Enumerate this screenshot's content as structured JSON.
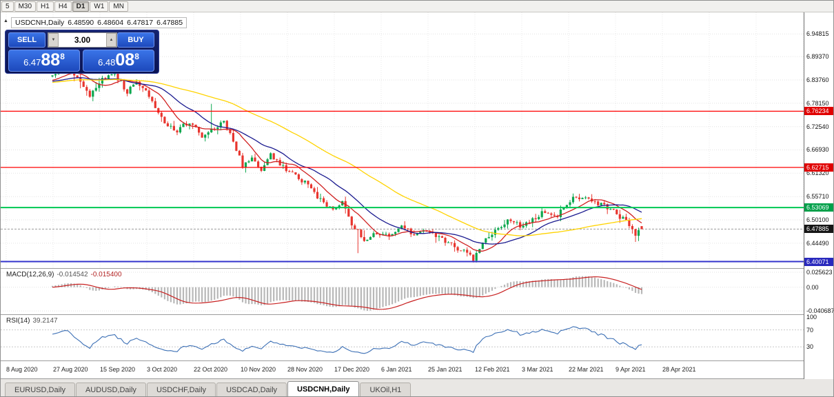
{
  "toolbar": {
    "timeframes": [
      "5",
      "M30",
      "H1",
      "H4",
      "D1",
      "W1",
      "MN"
    ],
    "active": "D1"
  },
  "chart_header": {
    "symbol": "USDCNH,Daily",
    "open": "6.48590",
    "high": "6.48604",
    "low": "6.47817",
    "close": "6.47885"
  },
  "icons": {
    "spin_up": "▲",
    "spin_down": "▼",
    "panel_collapse": "▲"
  },
  "trade_panel": {
    "sell_label": "SELL",
    "buy_label": "BUY",
    "volume": "3.00",
    "sell_price": {
      "main": "6.47",
      "big": "88",
      "sup": "8"
    },
    "buy_price": {
      "main": "6.48",
      "big": "08",
      "sup": "8"
    }
  },
  "price_axis": {
    "current_badge": {
      "label": "6.47885",
      "value": 6.47885,
      "color": "#161616"
    }
  },
  "chart_data": [
    {
      "type": "candlestick",
      "symbol": "USDCNH",
      "timeframe": "Daily",
      "ohlc_display": {
        "open": 6.4859,
        "high": 6.48604,
        "low": 6.47817,
        "close": 6.47885
      },
      "price_range": [
        6.385,
        7.0
      ],
      "y_ticks": [
        "6.94815",
        "6.89370",
        "6.83760",
        "6.78150",
        "6.72540",
        "6.66930",
        "6.61320",
        "6.55710",
        "6.50100",
        "6.44490"
      ],
      "x_labels": [
        "8 Aug 2020",
        "27 Aug 2020",
        "15 Sep 2020",
        "3 Oct 2020",
        "22 Oct 2020",
        "10 Nov 2020",
        "28 Nov 2020",
        "17 Dec 2020",
        "6 Jan 2021",
        "25 Jan 2021",
        "12 Feb 2021",
        "3 Mar 2021",
        "22 Mar 2021",
        "9 Apr 2021",
        "28 Apr 2021"
      ],
      "levels": [
        {
          "price": 6.76234,
          "label": "6.76234",
          "color": "#ff0000",
          "badge_color": "#e00000",
          "width": 1.2
        },
        {
          "price": 6.62715,
          "label": "6.62715",
          "color": "#ff0000",
          "badge_color": "#e00000",
          "width": 1.2
        },
        {
          "price": 6.53069,
          "label": "6.53069",
          "color": "#00c853",
          "badge_color": "#00a04a",
          "width": 2
        },
        {
          "price": 6.40071,
          "label": "6.40071",
          "color": "#3333cc",
          "badge_color": "#2929bd",
          "width": 2
        }
      ],
      "up_color": "#0ca74e",
      "down_color": "#e8352e",
      "num_candles": 190,
      "trend_close_anchors": [
        [
          0,
          6.852
        ],
        [
          4,
          6.868
        ],
        [
          8,
          6.842
        ],
        [
          12,
          6.8
        ],
        [
          16,
          6.838
        ],
        [
          20,
          6.852
        ],
        [
          24,
          6.81
        ],
        [
          27,
          6.835
        ],
        [
          31,
          6.8
        ],
        [
          35,
          6.748
        ],
        [
          39,
          6.712
        ],
        [
          44,
          6.738
        ],
        [
          48,
          6.7
        ],
        [
          52,
          6.722
        ],
        [
          55,
          6.742
        ],
        [
          58,
          6.688
        ],
        [
          61,
          6.632
        ],
        [
          64,
          6.648
        ],
        [
          67,
          6.618
        ],
        [
          70,
          6.658
        ],
        [
          74,
          6.63
        ],
        [
          78,
          6.606
        ],
        [
          82,
          6.588
        ],
        [
          86,
          6.548
        ],
        [
          90,
          6.522
        ],
        [
          93,
          6.545
        ],
        [
          96,
          6.492
        ],
        [
          100,
          6.452
        ],
        [
          104,
          6.47
        ],
        [
          108,
          6.462
        ],
        [
          112,
          6.482
        ],
        [
          116,
          6.468
        ],
        [
          120,
          6.478
        ],
        [
          124,
          6.458
        ],
        [
          128,
          6.44
        ],
        [
          132,
          6.425
        ],
        [
          135,
          6.405
        ],
        [
          138,
          6.452
        ],
        [
          142,
          6.472
        ],
        [
          146,
          6.5
        ],
        [
          150,
          6.488
        ],
        [
          154,
          6.502
        ],
        [
          158,
          6.522
        ],
        [
          162,
          6.512
        ],
        [
          166,
          6.548
        ],
        [
          170,
          6.558
        ],
        [
          175,
          6.54
        ],
        [
          179,
          6.528
        ],
        [
          182,
          6.508
        ],
        [
          185,
          6.492
        ],
        [
          187,
          6.468
        ],
        [
          189,
          6.47885
        ]
      ],
      "special_wicks": {
        "high": [
          [
            51,
            6.78
          ]
        ],
        "low": [
          [
            98,
            6.421
          ],
          [
            135,
            6.3985
          ]
        ]
      },
      "moving_averages": [
        {
          "period": 10,
          "color": "#d02020"
        },
        {
          "period": 21,
          "color": "#1a1a8f"
        },
        {
          "period": 55,
          "color": "#ffd300"
        }
      ]
    },
    {
      "type": "macd",
      "label": "MACD(12,26,9)",
      "value_main": "-0.014542",
      "value_signal": "-0.015400",
      "params": {
        "fast": 12,
        "slow": 26,
        "signal": 9
      },
      "y_ticks": [
        {
          "label": "0.025623",
          "value": 0.025623
        },
        {
          "label": "0.00",
          "value": 0
        },
        {
          "label": "-0.040687",
          "value": -0.040687
        }
      ],
      "range": [
        0.0315,
        -0.0465
      ],
      "histogram_color": "#b8b8b8",
      "signal_color": "#c82020"
    },
    {
      "type": "rsi",
      "label": "RSI(14)",
      "value": "39.2147",
      "period": 14,
      "levels": [
        70,
        30
      ],
      "y_ticks": [
        {
          "label": "100",
          "value": 100
        },
        {
          "label": "70",
          "value": 70
        },
        {
          "label": "30",
          "value": 30
        }
      ],
      "range": [
        105,
        -2
      ],
      "line_color": "#3b6fb5"
    }
  ],
  "tabs": {
    "items": [
      "EURUSD,Daily",
      "AUDUSD,Daily",
      "USDCHF,Daily",
      "USDCAD,Daily",
      "USDCNH,Daily",
      "UKOil,H1"
    ],
    "active": "USDCNH,Daily"
  }
}
